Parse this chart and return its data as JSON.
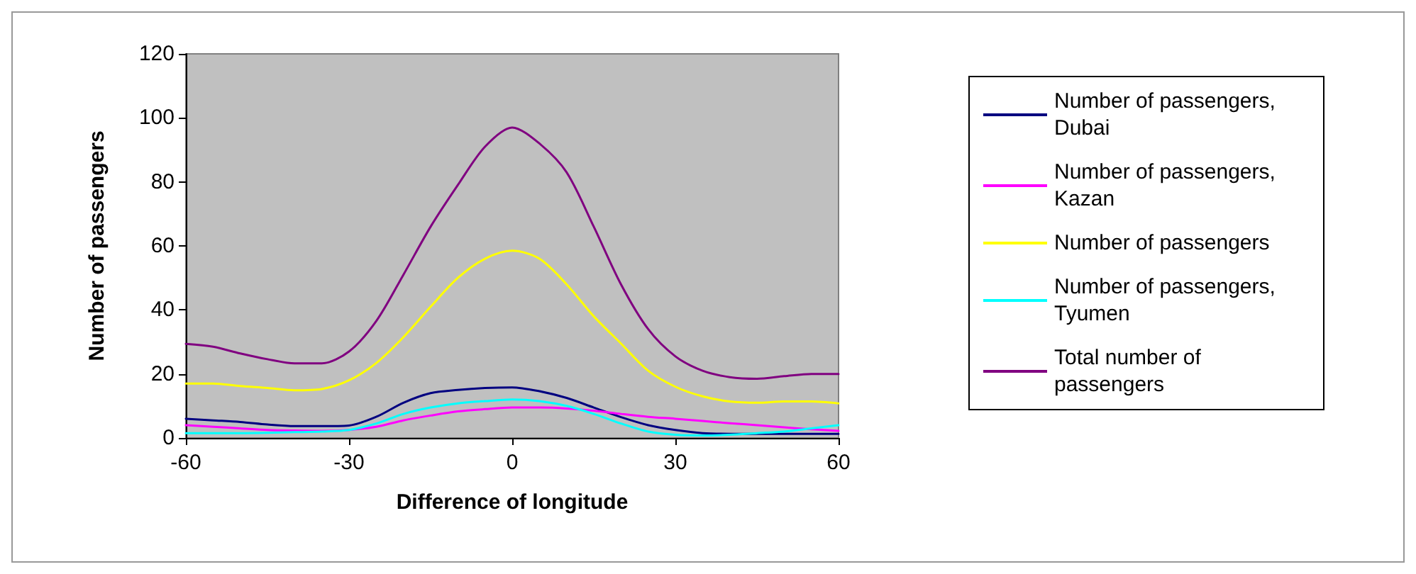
{
  "chart_data": {
    "type": "line",
    "xlabel": "Difference of longitude",
    "ylabel": "Number of passengers",
    "x": [
      -60,
      -55,
      -50,
      -45,
      -40,
      -35,
      -30,
      -25,
      -20,
      -15,
      -10,
      -5,
      0,
      5,
      10,
      15,
      20,
      25,
      30,
      35,
      40,
      45,
      50,
      55,
      60
    ],
    "series": [
      {
        "name": "Number of passengers, Dubai",
        "color": "#000080",
        "values": [
          6,
          5.5,
          5,
          4.2,
          3.7,
          3.7,
          3.9,
          6.6,
          11,
          14,
          15,
          15.6,
          15.8,
          14.6,
          12.5,
          9.5,
          6.5,
          4,
          2.5,
          1.5,
          1.3,
          1.3,
          1.3,
          1.3,
          1.3
        ]
      },
      {
        "name": "Number of passengers, Kazan",
        "color": "#ff00ff",
        "values": [
          4,
          3.5,
          3,
          2.5,
          2.3,
          2.2,
          2.5,
          3.5,
          5.5,
          7,
          8.3,
          9,
          9.5,
          9.5,
          9.2,
          8.5,
          7.5,
          6.6,
          6,
          5.3,
          4.6,
          4,
          3.3,
          2.7,
          2.2
        ]
      },
      {
        "name": "Number of passengers",
        "color": "#ffff00",
        "values": [
          17,
          17,
          16.2,
          15.6,
          14.9,
          15.3,
          18,
          23.4,
          31.5,
          41,
          50,
          56,
          58.5,
          56,
          48,
          38,
          29.5,
          21,
          16,
          13,
          11.4,
          11,
          11.4,
          11.4,
          10.8
        ]
      },
      {
        "name": "Number of passengers, Tyumen",
        "color": "#00ffff",
        "values": [
          1.5,
          1.5,
          1.5,
          1.6,
          1.8,
          2,
          2.5,
          4.5,
          7.5,
          9.5,
          10.8,
          11.5,
          12,
          11.5,
          10,
          7.5,
          4.5,
          2,
          1,
          0.8,
          1,
          1.5,
          2,
          3,
          4
        ]
      },
      {
        "name": "Total number of passengers",
        "color": "#800080",
        "values": [
          29.4,
          28.5,
          26.4,
          24.6,
          23.3,
          23.3,
          27,
          36.5,
          51,
          66,
          79,
          91,
          97,
          92,
          83,
          66,
          48,
          34,
          25.5,
          21,
          19,
          18.5,
          19.3,
          20,
          20
        ]
      }
    ],
    "xlim": [
      -60,
      60
    ],
    "xticks": [
      -60,
      -30,
      0,
      30,
      60
    ],
    "ylim": [
      0,
      120
    ],
    "yticks": [
      0,
      20,
      40,
      60,
      80,
      100,
      120
    ],
    "grid": false,
    "legend": "right",
    "marker": "none",
    "line_style": "solid"
  }
}
